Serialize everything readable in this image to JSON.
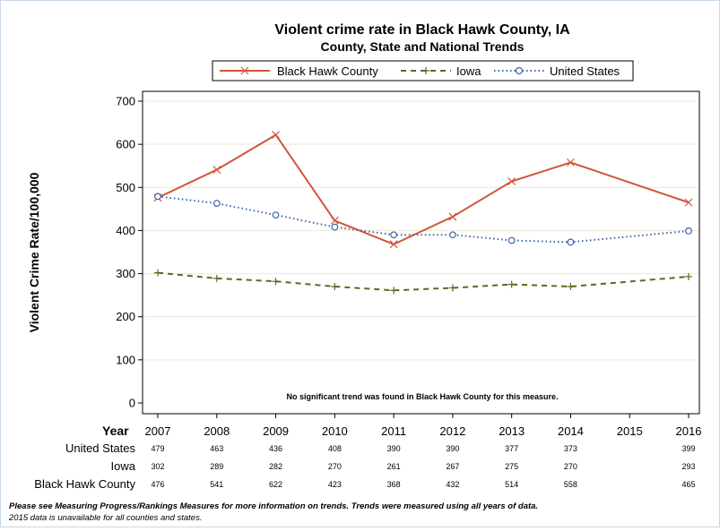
{
  "chart_data": {
    "type": "line",
    "title": "Violent crime rate in Black Hawk County, IA",
    "subtitle": "County, State and National Trends",
    "ylabel": "Violent Crime Rate/100,000",
    "xlabel": "Year",
    "ylim": [
      0,
      700
    ],
    "yticks": [
      0,
      100,
      200,
      300,
      400,
      500,
      600,
      700
    ],
    "x": [
      2007,
      2008,
      2009,
      2010,
      2011,
      2012,
      2013,
      2014,
      2015,
      2016
    ],
    "x_labels": [
      "2007",
      "2008",
      "2009",
      "2010",
      "2011",
      "2012",
      "2013",
      "2014",
      "2015",
      "2016"
    ],
    "legend_position": "top",
    "grid": true,
    "series": [
      {
        "name": "Black Hawk County",
        "color": "#d2553a",
        "style": "solid",
        "marker": "x-marker",
        "values": [
          476,
          541,
          622,
          423,
          368,
          432,
          514,
          558,
          null,
          465
        ]
      },
      {
        "name": "Iowa",
        "color": "#5b6b1e",
        "style": "dashed",
        "marker": "plus-marker",
        "values": [
          302,
          289,
          282,
          270,
          261,
          267,
          275,
          270,
          null,
          293
        ]
      },
      {
        "name": "United States",
        "color": "#3b63a8",
        "style": "dotted",
        "marker": "circle-marker",
        "values": [
          479,
          463,
          436,
          408,
          390,
          390,
          377,
          373,
          null,
          399
        ]
      }
    ],
    "table": {
      "header": "Year",
      "rows": [
        {
          "label": "United States",
          "cells": [
            "479",
            "463",
            "436",
            "408",
            "390",
            "390",
            "377",
            "373",
            "",
            "399"
          ]
        },
        {
          "label": "Iowa",
          "cells": [
            "302",
            "289",
            "282",
            "270",
            "261",
            "267",
            "275",
            "270",
            "",
            "293"
          ]
        },
        {
          "label": "Black Hawk County",
          "cells": [
            "476",
            "541",
            "622",
            "423",
            "368",
            "432",
            "514",
            "558",
            "",
            "465"
          ]
        }
      ]
    },
    "annotation": "No significant trend was found in Black Hawk County for this measure."
  },
  "footnotes": {
    "line1": "Please see Measuring Progress/Rankings Measures for more information on trends. Trends were measured using all years of data.",
    "line2": "2015 data is unavailable for all counties and states."
  }
}
